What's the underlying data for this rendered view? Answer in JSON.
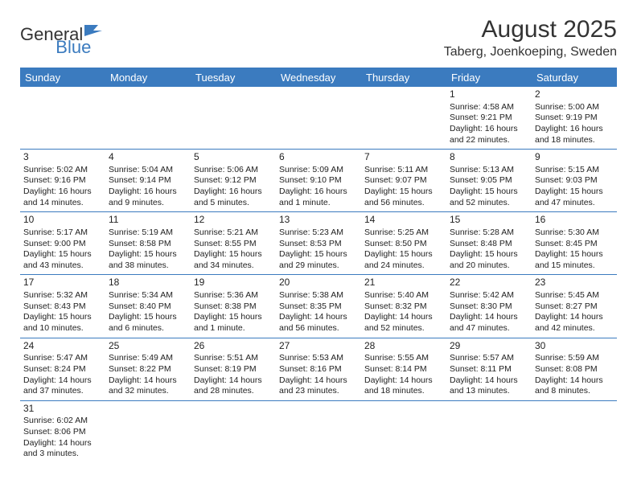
{
  "logo": {
    "text1": "General",
    "text2": "Blue"
  },
  "title": "August 2025",
  "location": "Taberg, Joenkoeping, Sweden",
  "colors": {
    "header_bg": "#3b7bbf",
    "header_text": "#ffffff",
    "border": "#3b7bbf",
    "text": "#222222",
    "background": "#ffffff"
  },
  "dayHeaders": [
    "Sunday",
    "Monday",
    "Tuesday",
    "Wednesday",
    "Thursday",
    "Friday",
    "Saturday"
  ],
  "weeks": [
    [
      null,
      null,
      null,
      null,
      null,
      {
        "n": "1",
        "sr": "4:58 AM",
        "ss": "9:21 PM",
        "dl1": "16 hours",
        "dl2": "and 22 minutes."
      },
      {
        "n": "2",
        "sr": "5:00 AM",
        "ss": "9:19 PM",
        "dl1": "16 hours",
        "dl2": "and 18 minutes."
      }
    ],
    [
      {
        "n": "3",
        "sr": "5:02 AM",
        "ss": "9:16 PM",
        "dl1": "16 hours",
        "dl2": "and 14 minutes."
      },
      {
        "n": "4",
        "sr": "5:04 AM",
        "ss": "9:14 PM",
        "dl1": "16 hours",
        "dl2": "and 9 minutes."
      },
      {
        "n": "5",
        "sr": "5:06 AM",
        "ss": "9:12 PM",
        "dl1": "16 hours",
        "dl2": "and 5 minutes."
      },
      {
        "n": "6",
        "sr": "5:09 AM",
        "ss": "9:10 PM",
        "dl1": "16 hours",
        "dl2": "and 1 minute."
      },
      {
        "n": "7",
        "sr": "5:11 AM",
        "ss": "9:07 PM",
        "dl1": "15 hours",
        "dl2": "and 56 minutes."
      },
      {
        "n": "8",
        "sr": "5:13 AM",
        "ss": "9:05 PM",
        "dl1": "15 hours",
        "dl2": "and 52 minutes."
      },
      {
        "n": "9",
        "sr": "5:15 AM",
        "ss": "9:03 PM",
        "dl1": "15 hours",
        "dl2": "and 47 minutes."
      }
    ],
    [
      {
        "n": "10",
        "sr": "5:17 AM",
        "ss": "9:00 PM",
        "dl1": "15 hours",
        "dl2": "and 43 minutes."
      },
      {
        "n": "11",
        "sr": "5:19 AM",
        "ss": "8:58 PM",
        "dl1": "15 hours",
        "dl2": "and 38 minutes."
      },
      {
        "n": "12",
        "sr": "5:21 AM",
        "ss": "8:55 PM",
        "dl1": "15 hours",
        "dl2": "and 34 minutes."
      },
      {
        "n": "13",
        "sr": "5:23 AM",
        "ss": "8:53 PM",
        "dl1": "15 hours",
        "dl2": "and 29 minutes."
      },
      {
        "n": "14",
        "sr": "5:25 AM",
        "ss": "8:50 PM",
        "dl1": "15 hours",
        "dl2": "and 24 minutes."
      },
      {
        "n": "15",
        "sr": "5:28 AM",
        "ss": "8:48 PM",
        "dl1": "15 hours",
        "dl2": "and 20 minutes."
      },
      {
        "n": "16",
        "sr": "5:30 AM",
        "ss": "8:45 PM",
        "dl1": "15 hours",
        "dl2": "and 15 minutes."
      }
    ],
    [
      {
        "n": "17",
        "sr": "5:32 AM",
        "ss": "8:43 PM",
        "dl1": "15 hours",
        "dl2": "and 10 minutes."
      },
      {
        "n": "18",
        "sr": "5:34 AM",
        "ss": "8:40 PM",
        "dl1": "15 hours",
        "dl2": "and 6 minutes."
      },
      {
        "n": "19",
        "sr": "5:36 AM",
        "ss": "8:38 PM",
        "dl1": "15 hours",
        "dl2": "and 1 minute."
      },
      {
        "n": "20",
        "sr": "5:38 AM",
        "ss": "8:35 PM",
        "dl1": "14 hours",
        "dl2": "and 56 minutes."
      },
      {
        "n": "21",
        "sr": "5:40 AM",
        "ss": "8:32 PM",
        "dl1": "14 hours",
        "dl2": "and 52 minutes."
      },
      {
        "n": "22",
        "sr": "5:42 AM",
        "ss": "8:30 PM",
        "dl1": "14 hours",
        "dl2": "and 47 minutes."
      },
      {
        "n": "23",
        "sr": "5:45 AM",
        "ss": "8:27 PM",
        "dl1": "14 hours",
        "dl2": "and 42 minutes."
      }
    ],
    [
      {
        "n": "24",
        "sr": "5:47 AM",
        "ss": "8:24 PM",
        "dl1": "14 hours",
        "dl2": "and 37 minutes."
      },
      {
        "n": "25",
        "sr": "5:49 AM",
        "ss": "8:22 PM",
        "dl1": "14 hours",
        "dl2": "and 32 minutes."
      },
      {
        "n": "26",
        "sr": "5:51 AM",
        "ss": "8:19 PM",
        "dl1": "14 hours",
        "dl2": "and 28 minutes."
      },
      {
        "n": "27",
        "sr": "5:53 AM",
        "ss": "8:16 PM",
        "dl1": "14 hours",
        "dl2": "and 23 minutes."
      },
      {
        "n": "28",
        "sr": "5:55 AM",
        "ss": "8:14 PM",
        "dl1": "14 hours",
        "dl2": "and 18 minutes."
      },
      {
        "n": "29",
        "sr": "5:57 AM",
        "ss": "8:11 PM",
        "dl1": "14 hours",
        "dl2": "and 13 minutes."
      },
      {
        "n": "30",
        "sr": "5:59 AM",
        "ss": "8:08 PM",
        "dl1": "14 hours",
        "dl2": "and 8 minutes."
      }
    ],
    [
      {
        "n": "31",
        "sr": "6:02 AM",
        "ss": "8:06 PM",
        "dl1": "14 hours",
        "dl2": "and 3 minutes."
      },
      null,
      null,
      null,
      null,
      null,
      null
    ]
  ],
  "labels": {
    "sunrise": "Sunrise:",
    "sunset": "Sunset:",
    "daylight": "Daylight:"
  }
}
